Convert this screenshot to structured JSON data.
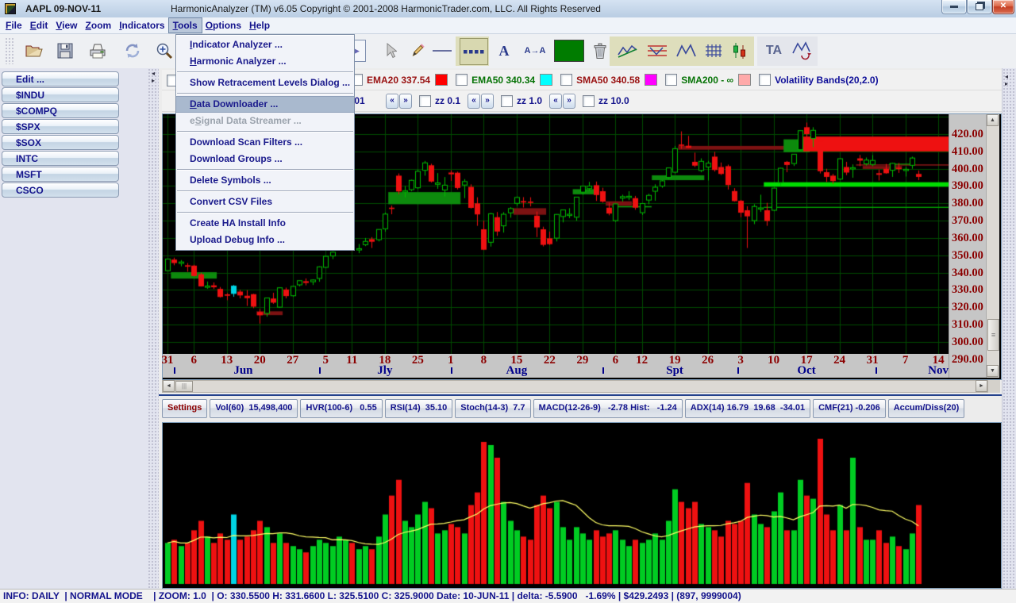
{
  "window": {
    "title_symbol": "AAPL 09-NOV-11",
    "title_app": "HarmonicAnalyzer (TM) v6.05 Copyright © 2001-2008 HarmonicTrader.com, LLC. All Rights Reserved",
    "controls": [
      "minimize",
      "restore",
      "close"
    ]
  },
  "menubar": {
    "open": "Tools",
    "items": [
      {
        "label": "File",
        "u": 0
      },
      {
        "label": "Edit",
        "u": 0
      },
      {
        "label": "View",
        "u": 0
      },
      {
        "label": "Zoom",
        "u": 0
      },
      {
        "label": "Indicators",
        "u": 0
      },
      {
        "label": "Tools",
        "u": 0
      },
      {
        "label": "Options",
        "u": 0
      },
      {
        "label": "Help",
        "u": 0
      }
    ]
  },
  "tools_menu": {
    "items": [
      {
        "label": "Indicator Analyzer ...",
        "u": 0
      },
      {
        "label": "Harmonic Analyzer ...",
        "u": 0
      },
      {
        "sep": true
      },
      {
        "label": "Show Retracement Levels Dialog ...",
        "u": -1
      },
      {
        "sep": true
      },
      {
        "label": "Data Downloader ...",
        "u": 0,
        "selected": true
      },
      {
        "label": "eSignal Data Streamer ...",
        "u": 1,
        "disabled": true
      },
      {
        "sep": true
      },
      {
        "label": "Download Scan Filters ...",
        "u": -1
      },
      {
        "label": "Download Groups ...",
        "u": -1
      },
      {
        "sep": true
      },
      {
        "label": "Delete Symbols ...",
        "u": -1
      },
      {
        "sep": true
      },
      {
        "label": "Convert CSV Files",
        "u": -1
      },
      {
        "sep": true
      },
      {
        "label": "Create HA Install Info",
        "u": -1
      },
      {
        "label": "Upload Debug Info ...",
        "u": -1
      }
    ]
  },
  "toolbar": {
    "buttons": [
      "grip",
      "open-folder",
      "save",
      "print",
      "refresh",
      "zoom-in",
      "play",
      "cursor",
      "pencil",
      "line",
      "dotted-line",
      "text-a",
      "text-scale",
      "color-swatch",
      "trash",
      "zigzag-chart",
      "harmonic-pattern",
      "m-pattern",
      "grid",
      "candlestick",
      "ta",
      "pattern-refresh"
    ],
    "selected": [
      "dotted-line"
    ]
  },
  "sidebar": {
    "items": [
      "Edit ...",
      "$INDU",
      "$COMPQ",
      "$SPX",
      "$SOX",
      "INTC",
      "MSFT",
      "CSCO"
    ]
  },
  "legend": {
    "items": [
      {
        "label": "EMA20 337.54",
        "text_color": "#991111",
        "swatch_after": "#ff0000"
      },
      {
        "label": "EMA50 340.34",
        "text_color": "#067306",
        "swatch_after": "#00ffff"
      },
      {
        "label": "SMA50 340.58",
        "text_color": "#991111",
        "swatch_after": "#ff00ff"
      },
      {
        "label": "SMA200 - ∞",
        "text_color": "#067306",
        "swatch_after": "#ffaaaa"
      },
      {
        "label": "Volatility Bands(20,2.0)",
        "text_color": "#101099",
        "swatch_after": null
      }
    ]
  },
  "zz_row": {
    "groups": [
      {
        "label": "zz 0.01"
      },
      {
        "label": "zz 0.1"
      },
      {
        "label": "zz 1.0"
      },
      {
        "label": "zz 10.0"
      }
    ]
  },
  "tabs": {
    "items": [
      {
        "label": "Settings",
        "color": "#8b0000"
      },
      {
        "label": "Vol(60)  15,498,400"
      },
      {
        "label": "HVR(100-6)   0.55"
      },
      {
        "label": "RSI(14)  35.10"
      },
      {
        "label": "Stoch(14-3)  7.7"
      },
      {
        "label": "MACD(12-26-9)   -2.78 Hist:   -1.24"
      },
      {
        "label": "ADX(14) 16.79  19.68  -34.01"
      },
      {
        "label": "CMF(21) -0.206"
      },
      {
        "label": "Accum/Diss(20)"
      }
    ]
  },
  "status": {
    "text": "INFO: DAILY  | NORMAL MODE    | ZOOM: 1.0  | O: 330.5500 H: 331.6600 L: 325.5100 C: 325.9000 Date: 10-JUN-11 | delta: -5.5900   -1.69% | $429.2493 | (897, 9999004)"
  },
  "chart_data": {
    "type": "candlestick",
    "symbol": "AAPL",
    "timeframe": "DAILY",
    "price_axis": {
      "min": 290,
      "max": 420,
      "step": 10,
      "top_price": 431.5,
      "bottom_price": 293.0
    },
    "colors": {
      "up": "#00bb00",
      "down": "#ee1111",
      "grid": "#004a00",
      "bg": "#000000",
      "vol_ma": "#ffff66",
      "axis_text": "#8b0000",
      "month_text": "#00008b"
    },
    "highlight_index": 10,
    "highlight_color": "#00d4e4",
    "date_ticks": [
      [
        "31",
        0
      ],
      [
        "6",
        4
      ],
      [
        "13",
        9
      ],
      [
        "20",
        14
      ],
      [
        "27",
        19
      ],
      [
        "5",
        24
      ],
      [
        "11",
        28
      ],
      [
        "18",
        33
      ],
      [
        "25",
        38
      ],
      [
        "1",
        43
      ],
      [
        "8",
        48
      ],
      [
        "15",
        53
      ],
      [
        "22",
        58
      ],
      [
        "29",
        63
      ],
      [
        "6",
        68
      ],
      [
        "12",
        72
      ],
      [
        "19",
        77
      ],
      [
        "26",
        82
      ],
      [
        "3",
        87
      ],
      [
        "10",
        92
      ],
      [
        "17",
        97
      ],
      [
        "24",
        102
      ],
      [
        "31",
        107
      ],
      [
        "7",
        112
      ],
      [
        "14",
        117
      ]
    ],
    "months": [
      [
        "Jun",
        11.5
      ],
      [
        "Jly",
        33
      ],
      [
        "Aug",
        53
      ],
      [
        "Spt",
        77
      ],
      [
        "Oct",
        97
      ],
      [
        "Nov",
        117
      ]
    ],
    "month_tick_idx": [
      1,
      23,
      43,
      66,
      86.5,
      107.5
    ],
    "zones": [
      [
        1,
        7,
        340.2,
        336.5,
        "#0d8a0d"
      ],
      [
        14,
        17,
        317.6,
        315.4,
        "#7c1212"
      ],
      [
        34,
        44,
        386.5,
        379.5,
        "#0d8a0d"
      ],
      [
        53,
        57,
        377.2,
        373.4,
        "#7c1212"
      ],
      [
        62,
        65,
        388.2,
        385.2,
        "#0d8a0d"
      ],
      [
        67,
        70,
        381.2,
        378.6,
        "#7c1212"
      ],
      [
        68,
        73,
        378.4,
        377.7,
        "#0fa00f"
      ],
      [
        74,
        81,
        396.2,
        393.4,
        "#0d8a0d"
      ],
      [
        78,
        94,
        413.2,
        411.0,
        "#7c1212"
      ],
      [
        94,
        97,
        417.0,
        409.5,
        "#0d8a0d"
      ],
      [
        97,
        119,
        418.6,
        410.0,
        "#ee1111"
      ],
      [
        91,
        119,
        392.2,
        389.6,
        "#00dd00"
      ],
      [
        91,
        119,
        378.0,
        377.4,
        "#00aa00"
      ],
      [
        106,
        111,
        401.6,
        399.9,
        "#7c1212"
      ],
      [
        105,
        119,
        402.4,
        402.0,
        "#cc2222"
      ],
      [
        110,
        113,
        402.9,
        402.5,
        "#00bb00"
      ]
    ],
    "candles": [
      [
        341.1,
        347.9,
        341.0,
        347.8
      ],
      [
        347.5,
        348.6,
        344.2,
        345.5
      ],
      [
        345.3,
        347.2,
        343.6,
        346.1
      ],
      [
        344.2,
        345.5,
        340.5,
        343.4
      ],
      [
        344.0,
        344.5,
        337.7,
        338.0
      ],
      [
        339.0,
        339.9,
        331.9,
        332.0
      ],
      [
        331.7,
        334.8,
        330.6,
        332.2
      ],
      [
        332.6,
        334.3,
        330.5,
        331.5
      ],
      [
        330.55,
        331.66,
        325.51,
        325.9
      ],
      [
        327.4,
        328.1,
        324.0,
        326.6
      ],
      [
        327.7,
        332.8,
        326.0,
        332.4
      ],
      [
        329.0,
        330.0,
        325.1,
        326.8
      ],
      [
        326.6,
        329.8,
        320.7,
        325.2
      ],
      [
        327.5,
        327.7,
        319.4,
        320.3
      ],
      [
        317.2,
        318.9,
        310.5,
        315.3
      ],
      [
        316.4,
        325.3,
        314.5,
        325.3
      ],
      [
        325.0,
        328.3,
        321.9,
        322.6
      ],
      [
        320.0,
        331.5,
        319.6,
        331.2
      ],
      [
        330.2,
        331.3,
        325.1,
        326.4
      ],
      [
        326.6,
        332.4,
        326.0,
        332.0
      ],
      [
        332.9,
        335.5,
        332.0,
        335.3
      ],
      [
        335.0,
        336.6,
        332.6,
        334.0
      ],
      [
        334.7,
        336.1,
        332.8,
        335.7
      ],
      [
        336.6,
        343.6,
        334.7,
        343.3
      ],
      [
        343.0,
        349.8,
        342.6,
        349.4
      ],
      [
        349.6,
        352.3,
        347.8,
        351.8
      ],
      [
        353.8,
        357.7,
        352.9,
        357.2
      ],
      [
        354.0,
        360.3,
        352.9,
        359.7
      ],
      [
        356.0,
        358.9,
        352.4,
        354.0
      ],
      [
        353.3,
        356.5,
        351.2,
        353.8
      ],
      [
        356.1,
        360.0,
        355.3,
        358.0
      ],
      [
        359.3,
        360.5,
        354.2,
        357.8
      ],
      [
        359.0,
        365.0,
        358.0,
        364.9
      ],
      [
        365.3,
        374.7,
        363.6,
        373.8
      ],
      [
        377.5,
        378.7,
        373.7,
        376.9
      ],
      [
        396.0,
        397.3,
        385.3,
        386.9
      ],
      [
        387.0,
        390.0,
        383.4,
        387.3
      ],
      [
        387.9,
        393.7,
        387.0,
        393.3
      ],
      [
        389.0,
        399.5,
        388.3,
        398.5
      ],
      [
        399.1,
        404.5,
        396.0,
        403.4
      ],
      [
        402.0,
        402.9,
        392.0,
        392.6
      ],
      [
        391.0,
        397.5,
        388.4,
        391.8
      ],
      [
        387.7,
        395.2,
        384.0,
        390.5
      ],
      [
        397.8,
        399.1,
        393.0,
        396.8
      ],
      [
        397.7,
        398.3,
        388.0,
        388.9
      ],
      [
        390.6,
        394.0,
        383.0,
        392.6
      ],
      [
        389.5,
        391.0,
        377.0,
        377.4
      ],
      [
        380.0,
        383.5,
        367.0,
        373.6
      ],
      [
        365.0,
        370.0,
        353.0,
        353.2
      ],
      [
        357.5,
        374.5,
        355.0,
        374.0
      ],
      [
        372.0,
        375.0,
        361.2,
        363.7
      ],
      [
        367.0,
        374.9,
        363.1,
        373.7
      ],
      [
        374.5,
        377.8,
        371.7,
        377.0
      ],
      [
        380.0,
        384.0,
        378.5,
        383.4
      ],
      [
        381.3,
        383.6,
        377.6,
        380.5
      ],
      [
        381.0,
        383.5,
        378.2,
        380.4
      ],
      [
        372.9,
        375.3,
        360.5,
        366.1
      ],
      [
        365.0,
        366.5,
        355.1,
        356.0
      ],
      [
        359.8,
        363.7,
        355.9,
        356.4
      ],
      [
        359.9,
        373.8,
        358.0,
        373.6
      ],
      [
        372.4,
        376.3,
        369.0,
        376.2
      ],
      [
        373.0,
        377.2,
        371.5,
        373.7
      ],
      [
        372.0,
        383.6,
        370.0,
        383.6
      ],
      [
        386.5,
        390.0,
        385.0,
        390.0
      ],
      [
        388.5,
        392.4,
        387.3,
        390.0
      ],
      [
        390.5,
        392.6,
        381.4,
        384.8
      ],
      [
        387.0,
        389.0,
        380.4,
        381.0
      ],
      [
        377.5,
        380.4,
        373.1,
        374.1
      ],
      [
        370.0,
        380.0,
        369.3,
        379.7
      ],
      [
        383.0,
        385.0,
        381.0,
        383.9
      ],
      [
        383.5,
        387.0,
        381.9,
        384.1
      ],
      [
        383.0,
        384.3,
        376.3,
        377.5
      ],
      [
        374.6,
        380.1,
        373.3,
        379.9
      ],
      [
        381.9,
        385.5,
        379.5,
        384.6
      ],
      [
        387.0,
        391.0,
        381.5,
        389.3
      ],
      [
        390.0,
        393.5,
        389.0,
        393.0
      ],
      [
        395.0,
        400.5,
        394.0,
        400.5
      ],
      [
        398.0,
        413.2,
        397.3,
        411.6
      ],
      [
        414.0,
        421.6,
        411.5,
        413.5
      ],
      [
        413.3,
        419.0,
        412.0,
        412.1
      ],
      [
        404.0,
        409.3,
        401.0,
        401.8
      ],
      [
        399.0,
        406.0,
        398.0,
        404.3
      ],
      [
        401.0,
        404.5,
        393.2,
        403.2
      ],
      [
        407.0,
        409.8,
        398.4,
        399.3
      ],
      [
        401.0,
        403.6,
        396.4,
        397.0
      ],
      [
        401.5,
        402.4,
        388.0,
        390.6
      ],
      [
        387.1,
        388.8,
        381.0,
        381.3
      ],
      [
        381.5,
        382.0,
        372.0,
        374.6
      ],
      [
        376.0,
        378.3,
        354.2,
        372.5
      ],
      [
        370.0,
        379.5,
        368.0,
        378.2
      ],
      [
        377.0,
        385.0,
        375.1,
        377.4
      ],
      [
        376.0,
        380.3,
        367.0,
        369.8
      ],
      [
        376.0,
        389.0,
        375.5,
        388.8
      ],
      [
        392.0,
        400.5,
        390.2,
        400.3
      ],
      [
        404.0,
        404.5,
        398.0,
        402.2
      ],
      [
        403.0,
        408.5,
        401.6,
        408.4
      ],
      [
        411.0,
        422.0,
        410.5,
        422.0
      ],
      [
        424.0,
        426.7,
        416.0,
        420.0
      ],
      [
        417.5,
        424.0,
        412.5,
        422.2
      ],
      [
        416.0,
        418.0,
        397.3,
        398.6
      ],
      [
        398.0,
        400.0,
        392.4,
        395.3
      ],
      [
        396.0,
        397.0,
        391.3,
        392.9
      ],
      [
        394.0,
        406.0,
        393.5,
        405.8
      ],
      [
        401.0,
        404.0,
        396.3,
        397.8
      ],
      [
        400.1,
        402.5,
        394.8,
        400.6
      ],
      [
        406.0,
        408.0,
        401.5,
        404.7
      ],
      [
        402.8,
        406.5,
        401.9,
        405.0
      ],
      [
        402.5,
        407.9,
        401.5,
        404.8
      ],
      [
        397.4,
        399.5,
        393.2,
        396.5
      ],
      [
        400.0,
        402.8,
        397.1,
        397.4
      ],
      [
        399.1,
        403.4,
        395.3,
        403.1
      ],
      [
        400.5,
        403.3,
        397.6,
        400.2
      ],
      [
        399.0,
        401.0,
        395.5,
        399.7
      ],
      [
        402.0,
        407.0,
        400.0,
        406.2
      ],
      [
        397.0,
        399.0,
        393.4,
        395.3
      ]
    ],
    "volumes": [
      13,
      14,
      12,
      13,
      17,
      20,
      15,
      13,
      16,
      14,
      22,
      14,
      15,
      17,
      20,
      18,
      13,
      16,
      13,
      12,
      11,
      10,
      12,
      14,
      13,
      12,
      15,
      14,
      13,
      11,
      12,
      11,
      15,
      22,
      28,
      33,
      20,
      18,
      22,
      26,
      24,
      16,
      17,
      19,
      18,
      16,
      25,
      29,
      45,
      44,
      40,
      26,
      20,
      17,
      15,
      14,
      25,
      28,
      24,
      26,
      18,
      14,
      18,
      16,
      14,
      17,
      15,
      16,
      17,
      14,
      12,
      14,
      13,
      14,
      16,
      14,
      20,
      30,
      26,
      24,
      26,
      19,
      18,
      17,
      15,
      20,
      19,
      20,
      32,
      22,
      19,
      18,
      23,
      29,
      17,
      17,
      33,
      28,
      27,
      46,
      22,
      17,
      25,
      17,
      40,
      18,
      14,
      14,
      17,
      13,
      15,
      12,
      11,
      16,
      25
    ]
  }
}
